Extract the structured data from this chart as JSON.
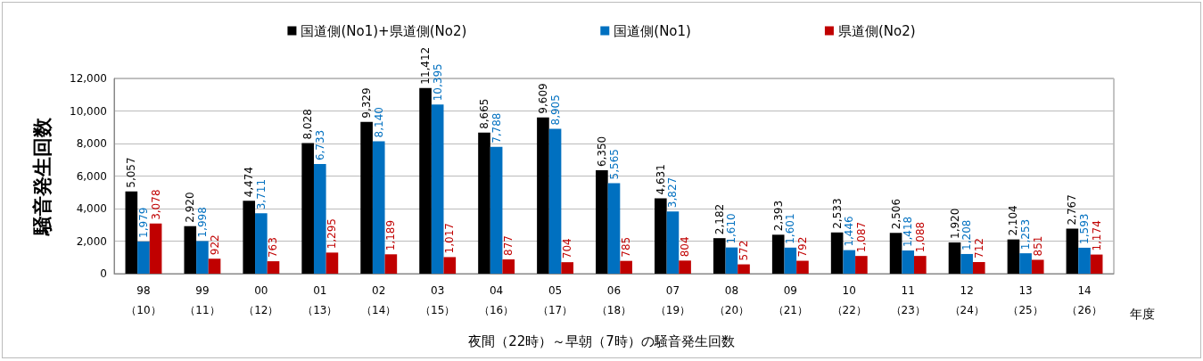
{
  "chart_data": {
    "type": "bar",
    "title": "夜間（22時）～早朝（7時）の騒音発生回数",
    "xlabel": "年度",
    "ylabel": "騒音発生回数",
    "categories": [
      "98\n（10）",
      "99\n（11）",
      "00\n（12）",
      "01\n（13）",
      "02\n（14）",
      "03\n（15）",
      "04\n（16）",
      "05\n（17）",
      "06\n（18）",
      "07\n（19）",
      "08\n（20）",
      "09\n（21）",
      "10\n（22）",
      "11\n（23）",
      "12\n（24）",
      "13\n（25）",
      "14\n（26）"
    ],
    "series": [
      {
        "name": "国道側(No1)+県道側(No2)",
        "color": "#000000",
        "values": [
          5057,
          2920,
          4474,
          8028,
          9329,
          11412,
          8665,
          9609,
          6350,
          4631,
          2182,
          2393,
          2533,
          2506,
          1920,
          2104,
          2767
        ],
        "value_labels": [
          "5,057",
          "2,920",
          "4,474",
          "8,028",
          "9,329",
          "11,412",
          "8,665",
          "9,609",
          "6,350",
          "4,631",
          "2,182",
          "2,393",
          "2,533",
          "2,506",
          "1,920",
          "2,104",
          "2,767"
        ]
      },
      {
        "name": "国道側(No1)",
        "color": "#0070c0",
        "values": [
          1979,
          1998,
          3711,
          6733,
          8140,
          10395,
          7788,
          8905,
          5565,
          3827,
          1610,
          1601,
          1446,
          1418,
          1208,
          1253,
          1593
        ],
        "value_labels": [
          "1,979",
          "1,998",
          "3,711",
          "6,733",
          "8,140",
          "10,395",
          "7,788",
          "8,905",
          "5,565",
          "3,827",
          "1,610",
          "1,601",
          "1,446",
          "1,418",
          "1,208",
          "1,253",
          "1,593"
        ]
      },
      {
        "name": "県道側(No2)",
        "color": "#c00000",
        "values": [
          3078,
          922,
          763,
          1295,
          1189,
          1017,
          877,
          704,
          785,
          804,
          572,
          792,
          1087,
          1088,
          712,
          851,
          1174
        ],
        "value_labels": [
          "3,078",
          "922",
          "763",
          "1,295",
          "1,189",
          "1,017",
          "877",
          "704",
          "785",
          "804",
          "572",
          "792",
          "1,087",
          "1,088",
          "712",
          "851",
          "1,174"
        ]
      }
    ],
    "ylim": [
      0,
      12000
    ],
    "yticks": [
      0,
      {
        "value": 2000,
        "label": "2,000"
      },
      {
        "value": 4000,
        "label": "4,000"
      },
      {
        "value": 6000,
        "label": "6,000"
      },
      {
        "value": 8000,
        "label": "8,000"
      },
      {
        "value": 10000,
        "label": "10,000"
      },
      {
        "value": 12000,
        "label": "12,000"
      }
    ],
    "grid": "y",
    "legend": "top"
  }
}
